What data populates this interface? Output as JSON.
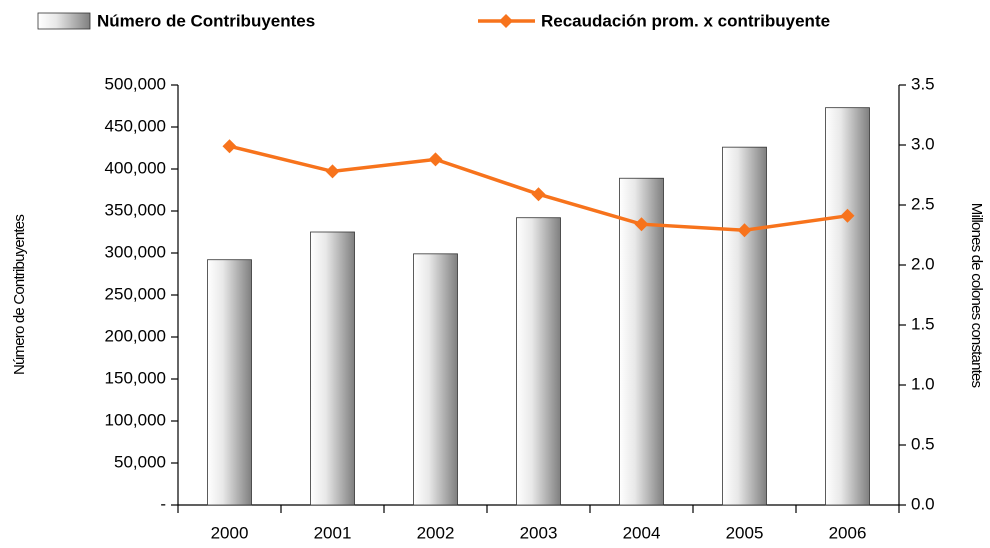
{
  "chart_data": {
    "type": "bar_line",
    "categories": [
      "2000",
      "2001",
      "2002",
      "2003",
      "2004",
      "2005",
      "2006"
    ],
    "series": [
      {
        "name": "Número de Contribuyentes",
        "type": "bar",
        "color": "#7f7f7f",
        "values": [
          292000,
          325000,
          299000,
          342000,
          389000,
          426000,
          473000
        ]
      },
      {
        "name": "Recaudación prom. x contribuyente",
        "type": "line",
        "axis": "y2",
        "color": "#f7731c",
        "values": [
          2.99,
          2.78,
          2.88,
          2.59,
          2.34,
          2.29,
          2.41
        ]
      }
    ],
    "y_label": "Número de Contribuyentes",
    "y2_label": "Millones de colones constantes",
    "ylim": [
      0,
      500000
    ],
    "yticks": [
      {
        "value": 0,
        "label": "-"
      },
      {
        "value": 50000,
        "label": "50,000"
      },
      {
        "value": 100000,
        "label": "100,000"
      },
      {
        "value": 150000,
        "label": "150,000"
      },
      {
        "value": 200000,
        "label": "200,000"
      },
      {
        "value": 250000,
        "label": "250,000"
      },
      {
        "value": 300000,
        "label": "300,000"
      },
      {
        "value": 350000,
        "label": "350,000"
      },
      {
        "value": 400000,
        "label": "400,000"
      },
      {
        "value": 450000,
        "label": "450,000"
      },
      {
        "value": 500000,
        "label": "500,000"
      }
    ],
    "y2lim": [
      0,
      3.5
    ],
    "y2ticks": [
      {
        "value": 0,
        "label": "0.0"
      },
      0.5,
      {
        "value": 1,
        "label": "1.0"
      },
      1.5,
      {
        "value": 2,
        "label": "2.0"
      },
      2.5,
      {
        "value": 3,
        "label": "3.0"
      },
      3.5
    ],
    "grid": false,
    "legend": "top"
  }
}
